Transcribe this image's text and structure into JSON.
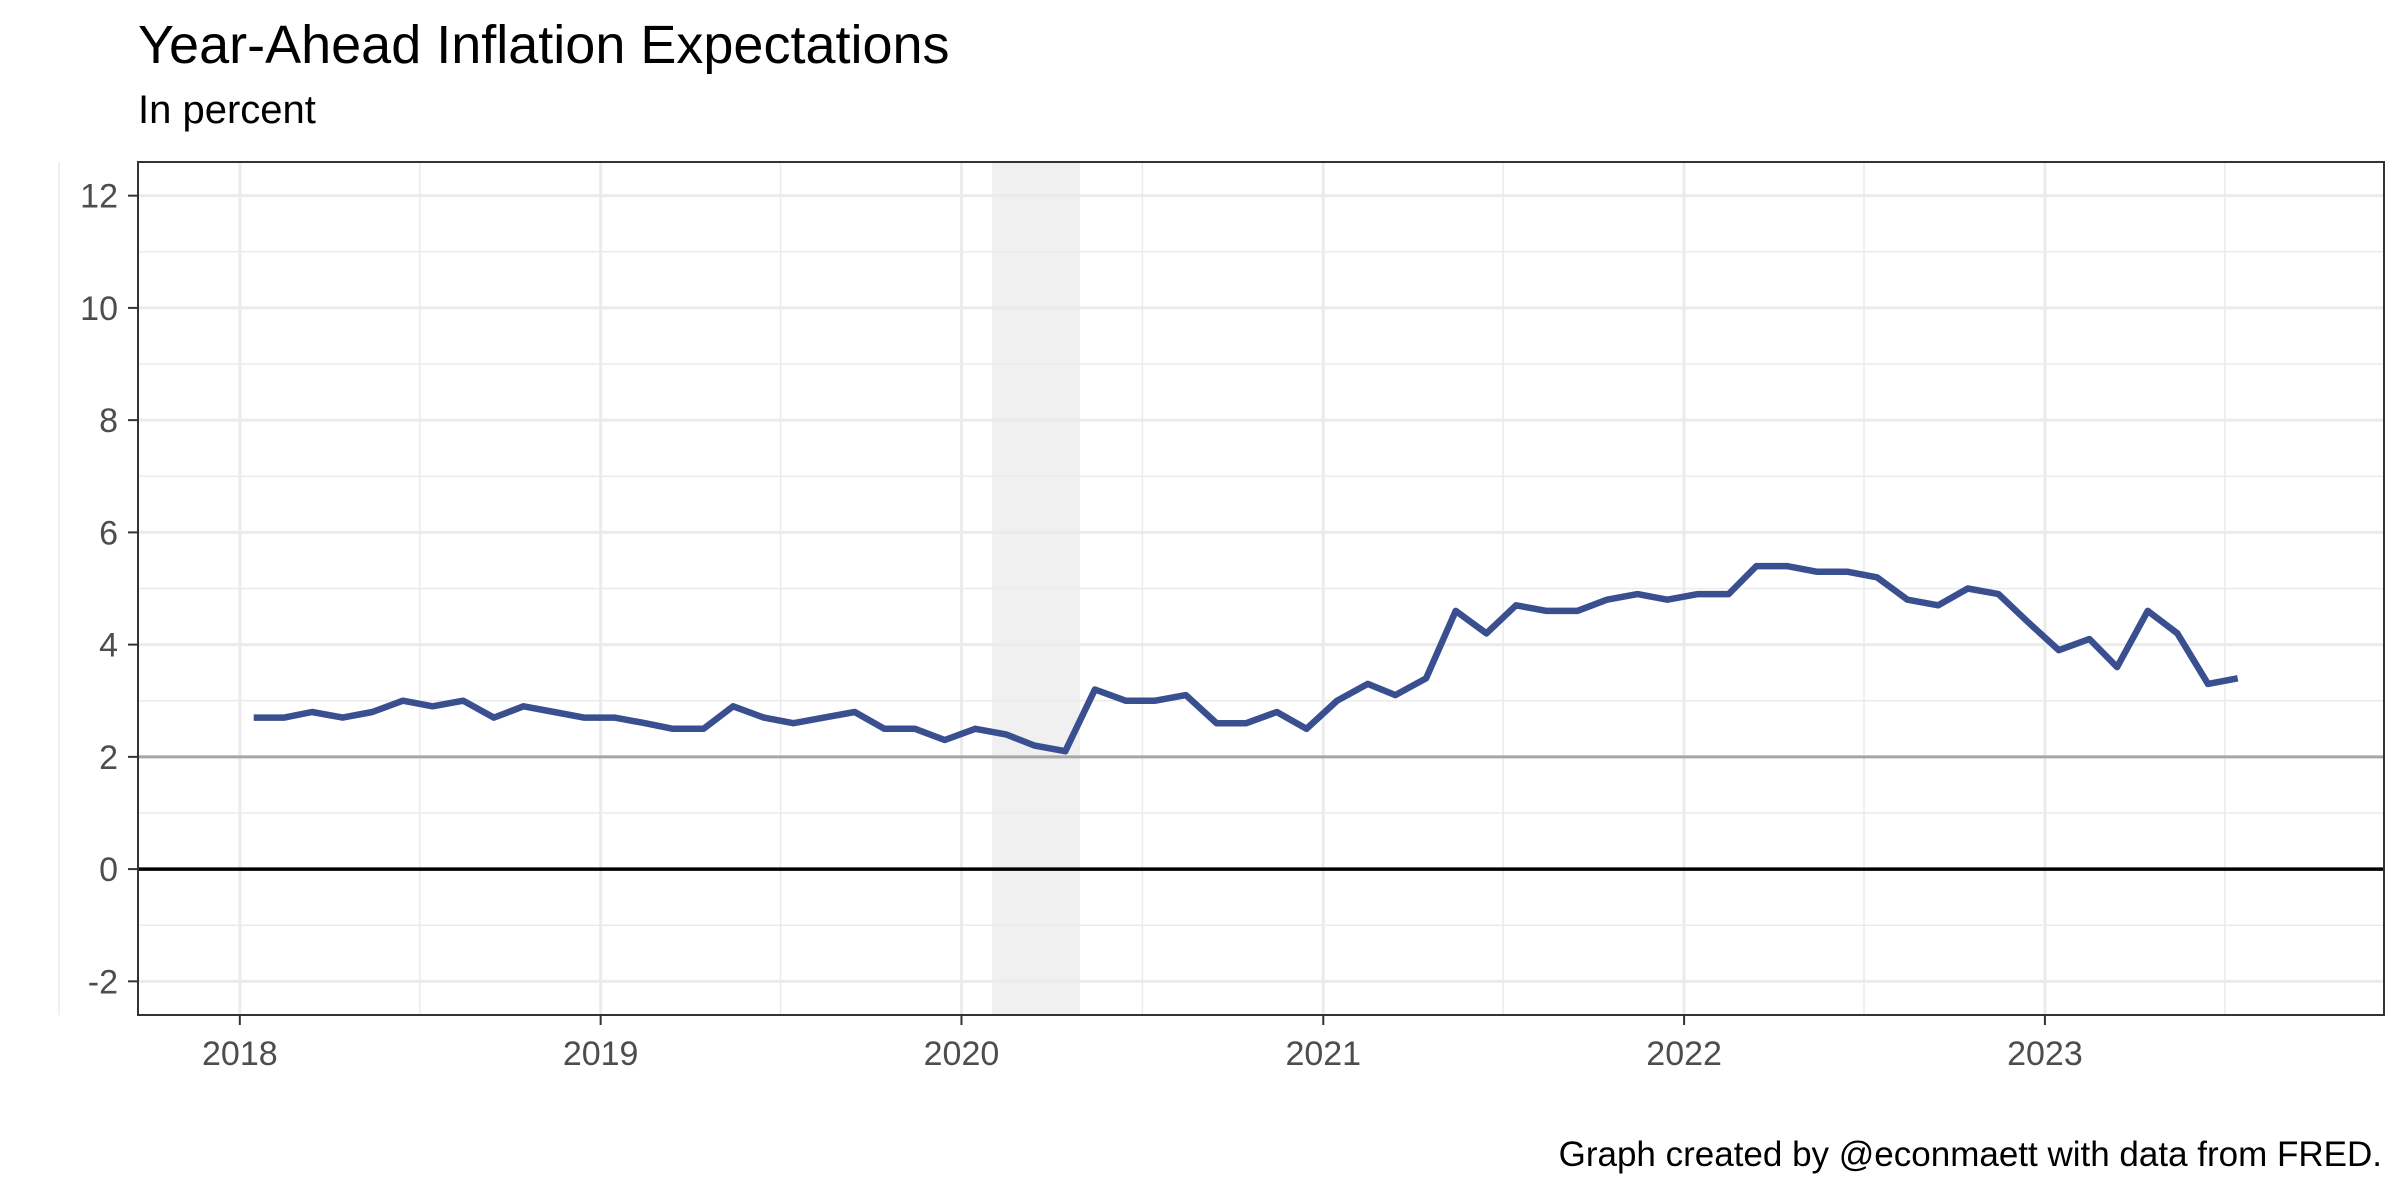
{
  "chart_data": {
    "type": "line",
    "title": "Year-Ahead Inflation Expectations",
    "subtitle": "In percent",
    "caption": "Graph created by @econmaett with data from FRED.",
    "xlabel": "",
    "ylabel": "",
    "x_ticks": [
      "2018",
      "2019",
      "2020",
      "2021",
      "2022",
      "2023"
    ],
    "y_ticks": [
      "-2",
      "0",
      "2",
      "4",
      "6",
      "8",
      "10",
      "12"
    ],
    "ylim": [
      -2.6,
      12.6
    ],
    "xlim": [
      "2017-09-20",
      "2023-12-10"
    ],
    "grid": true,
    "reference_lines": [
      {
        "y": 0,
        "color": "#000000"
      },
      {
        "y": 2,
        "color": "#a6a6a6"
      }
    ],
    "recession_shading": {
      "start": "2020-02-01",
      "end": "2020-04-30",
      "color": "#ebebeb"
    },
    "series": [
      {
        "color": "#3a4f8f",
        "x": [
          "2018-01",
          "2018-02",
          "2018-03",
          "2018-04",
          "2018-05",
          "2018-06",
          "2018-07",
          "2018-08",
          "2018-09",
          "2018-10",
          "2018-11",
          "2018-12",
          "2019-01",
          "2019-02",
          "2019-03",
          "2019-04",
          "2019-05",
          "2019-06",
          "2019-07",
          "2019-08",
          "2019-09",
          "2019-10",
          "2019-11",
          "2019-12",
          "2020-01",
          "2020-02",
          "2020-03",
          "2020-04",
          "2020-05",
          "2020-06",
          "2020-07",
          "2020-08",
          "2020-09",
          "2020-10",
          "2020-11",
          "2020-12",
          "2021-01",
          "2021-02",
          "2021-03",
          "2021-04",
          "2021-05",
          "2021-06",
          "2021-07",
          "2021-08",
          "2021-09",
          "2021-10",
          "2021-11",
          "2021-12",
          "2022-01",
          "2022-02",
          "2022-03",
          "2022-04",
          "2022-05",
          "2022-06",
          "2022-07",
          "2022-08",
          "2022-09",
          "2022-10",
          "2022-11",
          "2022-12",
          "2023-01",
          "2023-02",
          "2023-03",
          "2023-04",
          "2023-05",
          "2023-06",
          "2023-07"
        ],
        "values": [
          2.7,
          2.7,
          2.8,
          2.7,
          2.8,
          3.0,
          2.9,
          3.0,
          2.7,
          2.9,
          2.8,
          2.7,
          2.7,
          2.6,
          2.5,
          2.5,
          2.9,
          2.7,
          2.6,
          2.7,
          2.8,
          2.5,
          2.5,
          2.3,
          2.5,
          2.4,
          2.2,
          2.1,
          3.2,
          3.0,
          3.0,
          3.1,
          2.6,
          2.6,
          2.8,
          2.5,
          3.0,
          3.3,
          3.1,
          3.4,
          4.6,
          4.2,
          4.7,
          4.6,
          4.6,
          4.8,
          4.9,
          4.8,
          4.9,
          4.9,
          5.4,
          5.4,
          5.3,
          5.3,
          5.2,
          4.8,
          4.7,
          5.0,
          4.9,
          4.4,
          3.9,
          4.1,
          3.6,
          4.6,
          4.2,
          3.3,
          3.4
        ]
      }
    ]
  }
}
